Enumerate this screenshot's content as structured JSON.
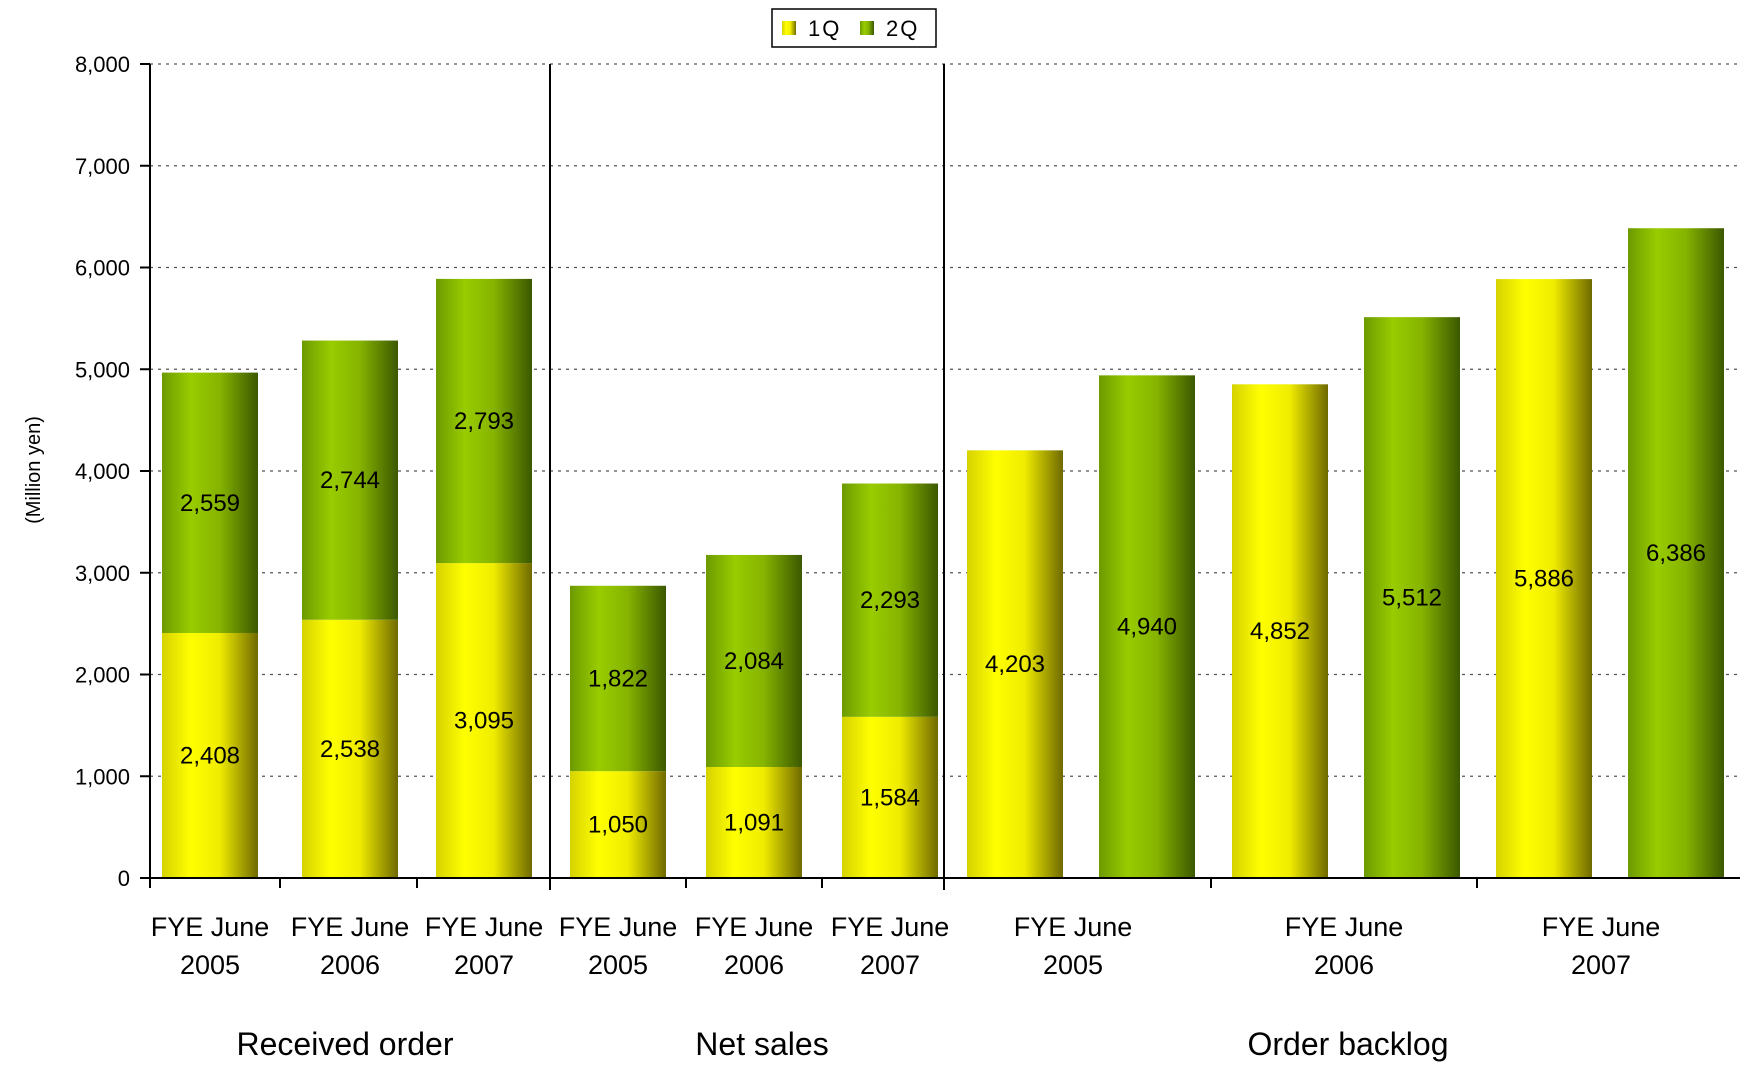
{
  "chart_data": {
    "type": "bar",
    "ylabel": "(Million yen)",
    "ylim": [
      0,
      8000
    ],
    "yticks": [
      0,
      1000,
      2000,
      3000,
      4000,
      5000,
      6000,
      7000,
      8000
    ],
    "ytick_labels": [
      "0",
      "1,000",
      "2,000",
      "3,000",
      "4,000",
      "5,000",
      "6,000",
      "7,000",
      "8,000"
    ],
    "grid": true,
    "legend": {
      "position": "top-center",
      "entries": [
        "1Q",
        "2Q"
      ]
    },
    "colors": {
      "1Q": "#f4f000",
      "2Q": "#7fb000"
    },
    "groups": [
      {
        "name": "Received order",
        "stacked": true,
        "categories": [
          {
            "line1": "FYE June",
            "line2": "2005"
          },
          {
            "line1": "FYE June",
            "line2": "2006"
          },
          {
            "line1": "FYE June",
            "line2": "2007"
          }
        ],
        "series": [
          {
            "name": "1Q",
            "values": [
              2408,
              2538,
              3095
            ],
            "labels": [
              "2,408",
              "2,538",
              "3,095"
            ]
          },
          {
            "name": "2Q",
            "values": [
              2559,
              2744,
              2793
            ],
            "labels": [
              "2,559",
              "2,744",
              "2,793"
            ]
          }
        ]
      },
      {
        "name": "Net sales",
        "stacked": true,
        "categories": [
          {
            "line1": "FYE June",
            "line2": "2005"
          },
          {
            "line1": "FYE June",
            "line2": "2006"
          },
          {
            "line1": "FYE June",
            "line2": "2007"
          }
        ],
        "series": [
          {
            "name": "1Q",
            "values": [
              1050,
              1091,
              1584
            ],
            "labels": [
              "1,050",
              "1,091",
              "1,584"
            ]
          },
          {
            "name": "2Q",
            "values": [
              1822,
              2084,
              2293
            ],
            "labels": [
              "1,822",
              "2,084",
              "2,293"
            ]
          }
        ]
      },
      {
        "name": "Order backlog",
        "stacked": false,
        "categories": [
          {
            "line1": "FYE June",
            "line2": "2005"
          },
          {
            "line1": "FYE June",
            "line2": "2006"
          },
          {
            "line1": "FYE June",
            "line2": "2007"
          }
        ],
        "series": [
          {
            "name": "1Q",
            "values": [
              4203,
              4852,
              5886
            ],
            "labels": [
              "4,203",
              "4,852",
              "5,886"
            ]
          },
          {
            "name": "2Q",
            "values": [
              4940,
              5512,
              6386
            ],
            "labels": [
              "4,940",
              "5,512",
              "6,386"
            ]
          }
        ]
      }
    ]
  }
}
